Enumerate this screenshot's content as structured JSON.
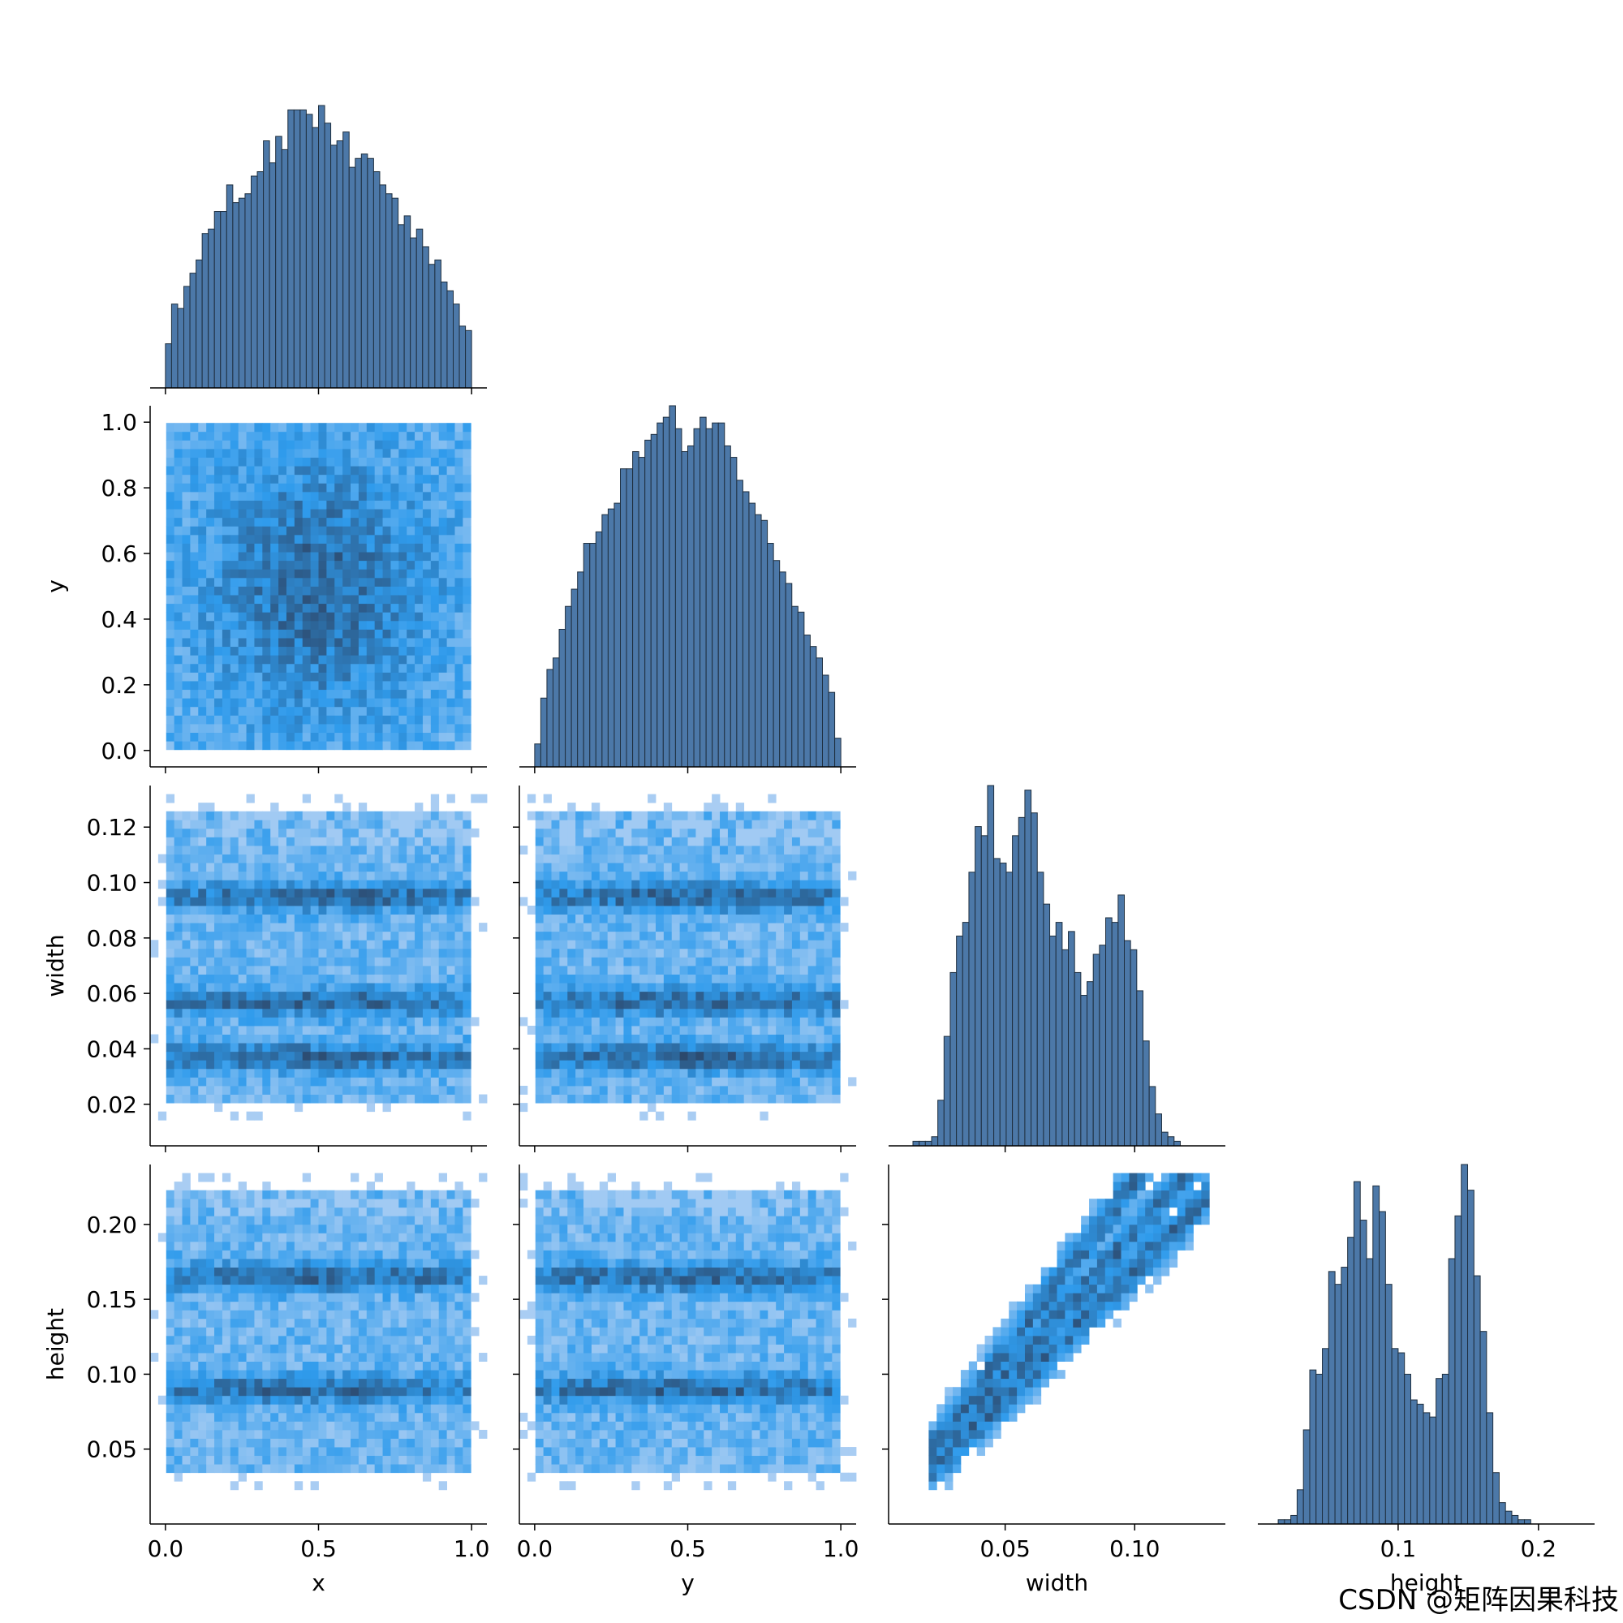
{
  "chart_data": {
    "type": "pairplot-corner",
    "variables": [
      "x",
      "y",
      "width",
      "height"
    ],
    "diag_style": {
      "type": "histogram",
      "fill": "#4c78a8",
      "edge": "#1f2f3f"
    },
    "offdiag_style": {
      "type": "heatmap",
      "low": "#b7d3f4",
      "mid": "#2f9bec",
      "high": "#2c3f5d"
    },
    "axes": {
      "x": {
        "range": [
          -0.05,
          1.05
        ],
        "ticks": [
          0.0,
          0.5,
          1.0
        ],
        "tick_labels": [
          "0.0",
          "0.5",
          "1.0"
        ]
      },
      "y": {
        "range": [
          -0.05,
          1.05
        ],
        "ticks": [
          0.0,
          0.5,
          1.0
        ],
        "tick_labels": [
          "0.0",
          "0.5",
          "1.0"
        ],
        "y_ticks": [
          0.0,
          0.2,
          0.4,
          0.6,
          0.8,
          1.0
        ],
        "y_tick_labels": [
          "0.0",
          "0.2",
          "0.4",
          "0.6",
          "0.8",
          "1.0"
        ]
      },
      "width": {
        "range": [
          0.005,
          0.135
        ],
        "ticks": [
          0.05,
          0.1
        ],
        "tick_labels": [
          "0.05",
          "0.10"
        ],
        "y_ticks": [
          0.02,
          0.04,
          0.06,
          0.08,
          0.1,
          0.12
        ],
        "y_tick_labels": [
          "0.02",
          "0.04",
          "0.06",
          "0.08",
          "0.10",
          "0.12"
        ]
      },
      "height": {
        "range": [
          0.0,
          0.24
        ],
        "ticks": [
          0.1,
          0.2
        ],
        "tick_labels": [
          "0.1",
          "0.2"
        ],
        "y_ticks": [
          0.05,
          0.1,
          0.15,
          0.2
        ],
        "y_tick_labels": [
          "0.05",
          "0.10",
          "0.15",
          "0.20"
        ]
      }
    },
    "histograms": {
      "x": {
        "start": 0.0,
        "bin_width": 0.02,
        "counts": [
          10,
          19,
          18,
          23,
          26,
          29,
          35,
          36,
          40,
          40,
          46,
          42,
          43,
          44,
          48,
          49,
          56,
          51,
          57,
          54,
          63,
          63,
          63,
          62,
          59,
          64,
          60,
          55,
          56,
          58,
          50,
          52,
          53,
          52,
          49,
          46,
          44,
          43,
          37,
          39,
          34,
          36,
          32,
          28,
          29,
          24,
          22,
          19,
          14,
          13
        ]
      },
      "y": {
        "start": 0.0,
        "bin_width": 0.02,
        "counts": [
          4,
          12,
          17,
          19,
          24,
          28,
          31,
          34,
          39,
          39,
          41,
          44,
          45,
          46,
          52,
          52,
          55,
          54,
          57,
          58,
          60,
          61,
          63,
          59,
          55,
          56,
          59,
          61,
          59,
          60,
          60,
          56,
          54,
          50,
          48,
          46,
          44,
          43,
          39,
          36,
          34,
          32,
          28,
          27,
          23,
          21,
          19,
          16,
          13,
          5
        ]
      },
      "width": {
        "start": 0.012,
        "bin_width": 0.0024,
        "counts": [
          0,
          1,
          1,
          1,
          2,
          10,
          24,
          38,
          46,
          49,
          60,
          70,
          68,
          79,
          63,
          62,
          60,
          68,
          72,
          78,
          73,
          60,
          53,
          46,
          49,
          43,
          47,
          38,
          33,
          36,
          42,
          44,
          50,
          49,
          55,
          45,
          43,
          34,
          23,
          13,
          7,
          3,
          2,
          1,
          0,
          0,
          0,
          0,
          0,
          0
        ]
      },
      "height": {
        "start": 0.01,
        "bin_width": 0.0045,
        "counts": [
          0,
          1,
          1,
          2,
          8,
          22,
          36,
          35,
          41,
          59,
          56,
          60,
          67,
          80,
          71,
          62,
          79,
          73,
          56,
          41,
          40,
          35,
          29,
          28,
          26,
          25,
          34,
          35,
          62,
          72,
          84,
          78,
          58,
          45,
          26,
          12,
          5,
          3,
          2,
          1,
          1,
          0,
          0,
          0,
          0,
          0,
          0,
          0,
          0,
          0
        ]
      }
    },
    "heatmaps": [
      {
        "x": "x",
        "y": "y",
        "pattern": "central-blob",
        "center": [
          0.5,
          0.5
        ],
        "spread": [
          0.25,
          0.28
        ]
      },
      {
        "x": "x",
        "y": "width",
        "pattern": "bands",
        "bands": [
          0.037,
          0.057,
          0.095
        ]
      },
      {
        "x": "y",
        "y": "width",
        "pattern": "bands",
        "bands": [
          0.037,
          0.057,
          0.095
        ]
      },
      {
        "x": "x",
        "y": "height",
        "pattern": "bands",
        "bands": [
          0.09,
          0.165
        ]
      },
      {
        "x": "y",
        "y": "height",
        "pattern": "bands",
        "bands": [
          0.09,
          0.165
        ]
      },
      {
        "x": "width",
        "y": "height",
        "pattern": "diagonal-streaks",
        "ratios": [
          1.7,
          1.95,
          2.3
        ]
      }
    ]
  },
  "watermark": "CSDN @矩阵因果科技"
}
